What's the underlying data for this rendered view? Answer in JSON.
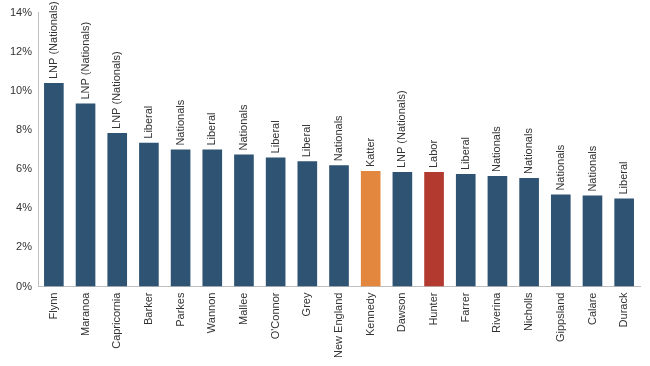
{
  "chart_data": {
    "type": "bar",
    "categories": [
      "Flynn",
      "Maranoa",
      "Capricornia",
      "Barker",
      "Parkes",
      "Wannon",
      "Mallee",
      "O'Connor",
      "Grey",
      "New England",
      "Kennedy",
      "Dawson",
      "Hunter",
      "Farrer",
      "Riverina",
      "Nicholls",
      "Gippsland",
      "Calare",
      "Durack"
    ],
    "values": [
      10.4,
      9.35,
      7.85,
      7.35,
      7.0,
      7.0,
      6.75,
      6.6,
      6.4,
      6.2,
      5.9,
      5.85,
      5.85,
      5.75,
      5.65,
      5.55,
      4.7,
      4.65,
      4.5
    ],
    "annotations": [
      "LNP (Nationals)",
      "LNP (Nationals)",
      "LNP (Nationals)",
      "Liberal",
      "Nationals",
      "Liberal",
      "Nationals",
      "Liberal",
      "Liberal",
      "Nationals",
      "Katter",
      "LNP (Nationals)",
      "Labor",
      "Liberal",
      "Nationals",
      "Nationals",
      "Nationals",
      "Nationals",
      "Liberal"
    ],
    "colors": [
      "#2e5373",
      "#2e5373",
      "#2e5373",
      "#2e5373",
      "#2e5373",
      "#2e5373",
      "#2e5373",
      "#2e5373",
      "#2e5373",
      "#2e5373",
      "#e3873e",
      "#2e5373",
      "#b23a2f",
      "#2e5373",
      "#2e5373",
      "#2e5373",
      "#2e5373",
      "#2e5373",
      "#2e5373"
    ],
    "ylim": [
      0,
      14
    ],
    "yticks": [
      {
        "value": 0,
        "label": "0%"
      },
      {
        "value": 2,
        "label": "2%"
      },
      {
        "value": 4,
        "label": "4%"
      },
      {
        "value": 6,
        "label": "6%"
      },
      {
        "value": 8,
        "label": "8%"
      },
      {
        "value": 10,
        "label": "10%"
      },
      {
        "value": 12,
        "label": "12%"
      },
      {
        "value": 14,
        "label": "14%"
      }
    ],
    "grid": false
  }
}
